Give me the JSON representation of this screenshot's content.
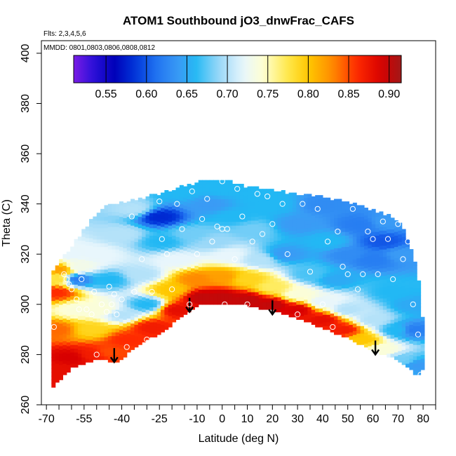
{
  "chart_data": {
    "type": "heatmap",
    "title": "ATOM1 Southbound jO3_dnwFrac_CAFS",
    "flights_note": "Flts: 2,3,4,5,6",
    "dates_note": "MMDD: 0801,0803,0806,0808,0812",
    "xlabel": "Latitude (deg N)",
    "ylabel": "Theta (C)",
    "xlim": [
      -72,
      85
    ],
    "ylim": [
      260,
      405
    ],
    "x_ticks": [
      -70,
      -55,
      -40,
      -25,
      -10,
      0,
      10,
      20,
      30,
      40,
      50,
      60,
      70,
      80
    ],
    "x_minor_ticks": [
      -65,
      -60,
      -50,
      -45,
      -35,
      -30,
      -20,
      -15,
      -5,
      5,
      15,
      25,
      35,
      45,
      55,
      65,
      75,
      85
    ],
    "y_ticks": [
      260,
      280,
      300,
      320,
      340,
      360,
      380,
      400
    ],
    "colorbar": {
      "min": 0.51,
      "max": 0.915,
      "ticks": [
        0.55,
        0.6,
        0.65,
        0.7,
        0.75,
        0.8,
        0.85,
        0.9
      ],
      "tick_labels": [
        "0.55",
        "0.60",
        "0.65",
        "0.70",
        "0.75",
        "0.80",
        "0.85",
        "0.90"
      ],
      "stops": [
        {
          "v": 0.51,
          "c": "#7a1de6"
        },
        {
          "v": 0.535,
          "c": "#2a0fd8"
        },
        {
          "v": 0.56,
          "c": "#0000b8"
        },
        {
          "v": 0.585,
          "c": "#0033d8"
        },
        {
          "v": 0.61,
          "c": "#1e6ff0"
        },
        {
          "v": 0.64,
          "c": "#3a9bf5"
        },
        {
          "v": 0.66,
          "c": "#22b8f4"
        },
        {
          "v": 0.69,
          "c": "#9ad8f8"
        },
        {
          "v": 0.72,
          "c": "#e8f6fc"
        },
        {
          "v": 0.745,
          "c": "#ffffd0"
        },
        {
          "v": 0.775,
          "c": "#ffe84a"
        },
        {
          "v": 0.8,
          "c": "#ffc800"
        },
        {
          "v": 0.83,
          "c": "#ff8a00"
        },
        {
          "v": 0.86,
          "c": "#ff2a00"
        },
        {
          "v": 0.89,
          "c": "#d80000"
        },
        {
          "v": 0.915,
          "c": "#a01818"
        }
      ]
    },
    "top_envelope": [
      {
        "lat": -68,
        "theta": 312
      },
      {
        "lat": -64,
        "theta": 318
      },
      {
        "lat": -60,
        "theta": 322
      },
      {
        "lat": -56,
        "theta": 328
      },
      {
        "lat": -50,
        "theta": 336
      },
      {
        "lat": -45,
        "theta": 339
      },
      {
        "lat": -38,
        "theta": 340
      },
      {
        "lat": -30,
        "theta": 342
      },
      {
        "lat": -20,
        "theta": 345
      },
      {
        "lat": -10,
        "theta": 348
      },
      {
        "lat": 0,
        "theta": 349
      },
      {
        "lat": 10,
        "theta": 346
      },
      {
        "lat": 20,
        "theta": 345
      },
      {
        "lat": 30,
        "theta": 343
      },
      {
        "lat": 40,
        "theta": 342
      },
      {
        "lat": 50,
        "theta": 340
      },
      {
        "lat": 60,
        "theta": 337
      },
      {
        "lat": 68,
        "theta": 334
      },
      {
        "lat": 72,
        "theta": 330
      },
      {
        "lat": 76,
        "theta": 320
      },
      {
        "lat": 79,
        "theta": 305
      },
      {
        "lat": 80,
        "theta": 290
      }
    ],
    "bottom_envelope": [
      {
        "lat": -68,
        "theta": 267
      },
      {
        "lat": -60,
        "theta": 275
      },
      {
        "lat": -55,
        "theta": 277
      },
      {
        "lat": -48,
        "theta": 279
      },
      {
        "lat": -42,
        "theta": 277
      },
      {
        "lat": -35,
        "theta": 283
      },
      {
        "lat": -25,
        "theta": 289
      },
      {
        "lat": -15,
        "theta": 296
      },
      {
        "lat": -10,
        "theta": 300
      },
      {
        "lat": 0,
        "theta": 301
      },
      {
        "lat": 10,
        "theta": 300
      },
      {
        "lat": 20,
        "theta": 298
      },
      {
        "lat": 30,
        "theta": 295
      },
      {
        "lat": 40,
        "theta": 291
      },
      {
        "lat": 50,
        "theta": 287
      },
      {
        "lat": 60,
        "theta": 282
      },
      {
        "lat": 68,
        "theta": 279
      },
      {
        "lat": 74,
        "theta": 275
      },
      {
        "lat": 78,
        "theta": 272
      },
      {
        "lat": 80,
        "theta": 275
      }
    ],
    "tropopause_arrows": [
      {
        "lat": -43,
        "theta": 277
      },
      {
        "lat": -13,
        "theta": 297
      },
      {
        "lat": 20,
        "theta": 296
      },
      {
        "lat": 61,
        "theta": 280
      }
    ],
    "field_points": [
      {
        "lat": -66,
        "theta": 274,
        "v": 0.88
      },
      {
        "lat": -60,
        "theta": 279,
        "v": 0.89
      },
      {
        "lat": -52,
        "theta": 280,
        "v": 0.87
      },
      {
        "lat": -45,
        "theta": 281,
        "v": 0.85
      },
      {
        "lat": -38,
        "theta": 286,
        "v": 0.86
      },
      {
        "lat": -28,
        "theta": 291,
        "v": 0.87
      },
      {
        "lat": -18,
        "theta": 298,
        "v": 0.88
      },
      {
        "lat": -8,
        "theta": 303,
        "v": 0.9
      },
      {
        "lat": 0,
        "theta": 303,
        "v": 0.9
      },
      {
        "lat": 10,
        "theta": 302,
        "v": 0.9
      },
      {
        "lat": 20,
        "theta": 300,
        "v": 0.9
      },
      {
        "lat": 30,
        "theta": 298,
        "v": 0.89
      },
      {
        "lat": 40,
        "theta": 294,
        "v": 0.88
      },
      {
        "lat": 48,
        "theta": 290,
        "v": 0.87
      },
      {
        "lat": 56,
        "theta": 286,
        "v": 0.8
      },
      {
        "lat": 64,
        "theta": 282,
        "v": 0.74
      },
      {
        "lat": 72,
        "theta": 278,
        "v": 0.68
      },
      {
        "lat": 78,
        "theta": 276,
        "v": 0.64
      },
      {
        "lat": -66,
        "theta": 290,
        "v": 0.84
      },
      {
        "lat": -66,
        "theta": 305,
        "v": 0.86
      },
      {
        "lat": -64,
        "theta": 314,
        "v": 0.82
      },
      {
        "lat": -58,
        "theta": 298,
        "v": 0.74
      },
      {
        "lat": -52,
        "theta": 290,
        "v": 0.79
      },
      {
        "lat": -48,
        "theta": 298,
        "v": 0.74
      },
      {
        "lat": -40,
        "theta": 296,
        "v": 0.7
      },
      {
        "lat": -30,
        "theta": 300,
        "v": 0.66
      },
      {
        "lat": -20,
        "theta": 306,
        "v": 0.8
      },
      {
        "lat": -10,
        "theta": 310,
        "v": 0.83
      },
      {
        "lat": 0,
        "theta": 311,
        "v": 0.82
      },
      {
        "lat": 10,
        "theta": 310,
        "v": 0.79
      },
      {
        "lat": 20,
        "theta": 307,
        "v": 0.77
      },
      {
        "lat": 30,
        "theta": 304,
        "v": 0.74
      },
      {
        "lat": 40,
        "theta": 301,
        "v": 0.72
      },
      {
        "lat": 50,
        "theta": 298,
        "v": 0.7
      },
      {
        "lat": 60,
        "theta": 294,
        "v": 0.7
      },
      {
        "lat": 70,
        "theta": 290,
        "v": 0.66
      },
      {
        "lat": 76,
        "theta": 290,
        "v": 0.62
      },
      {
        "lat": -58,
        "theta": 315,
        "v": 0.73
      },
      {
        "lat": -58,
        "theta": 310,
        "v": 0.62
      },
      {
        "lat": -50,
        "theta": 320,
        "v": 0.72
      },
      {
        "lat": -45,
        "theta": 310,
        "v": 0.66
      },
      {
        "lat": -40,
        "theta": 328,
        "v": 0.7
      },
      {
        "lat": -32,
        "theta": 312,
        "v": 0.7
      },
      {
        "lat": -25,
        "theta": 335,
        "v": 0.58
      },
      {
        "lat": -24,
        "theta": 325,
        "v": 0.66
      },
      {
        "lat": -18,
        "theta": 318,
        "v": 0.72
      },
      {
        "lat": -12,
        "theta": 328,
        "v": 0.68
      },
      {
        "lat": -5,
        "theta": 340,
        "v": 0.64
      },
      {
        "lat": -3,
        "theta": 325,
        "v": 0.69
      },
      {
        "lat": 3,
        "theta": 320,
        "v": 0.72
      },
      {
        "lat": 5,
        "theta": 335,
        "v": 0.66
      },
      {
        "lat": 12,
        "theta": 330,
        "v": 0.68
      },
      {
        "lat": 15,
        "theta": 318,
        "v": 0.7
      },
      {
        "lat": 20,
        "theta": 340,
        "v": 0.66
      },
      {
        "lat": 25,
        "theta": 320,
        "v": 0.64
      },
      {
        "lat": 30,
        "theta": 332,
        "v": 0.64
      },
      {
        "lat": 35,
        "theta": 312,
        "v": 0.67
      },
      {
        "lat": 42,
        "theta": 325,
        "v": 0.66
      },
      {
        "lat": 45,
        "theta": 310,
        "v": 0.65
      },
      {
        "lat": 50,
        "theta": 320,
        "v": 0.63
      },
      {
        "lat": 55,
        "theta": 332,
        "v": 0.62
      },
      {
        "lat": 60,
        "theta": 318,
        "v": 0.62
      },
      {
        "lat": 64,
        "theta": 325,
        "v": 0.6
      },
      {
        "lat": 68,
        "theta": 305,
        "v": 0.66
      },
      {
        "lat": 72,
        "theta": 320,
        "v": 0.64
      },
      {
        "lat": 76,
        "theta": 300,
        "v": 0.65
      },
      {
        "lat": -15,
        "theta": 345,
        "v": 0.66
      },
      {
        "lat": 0,
        "theta": 346,
        "v": 0.66
      },
      {
        "lat": 15,
        "theta": 343,
        "v": 0.66
      },
      {
        "lat": 40,
        "theta": 340,
        "v": 0.63
      },
      {
        "lat": 65,
        "theta": 333,
        "v": 0.64
      },
      {
        "lat": -35,
        "theta": 338,
        "v": 0.7
      },
      {
        "lat": -60,
        "theta": 320,
        "v": 0.72
      },
      {
        "lat": -65,
        "theta": 310,
        "v": 0.78
      }
    ],
    "markers": [
      {
        "lat": -67,
        "theta": 291
      },
      {
        "lat": -63,
        "theta": 312
      },
      {
        "lat": -62,
        "theta": 310
      },
      {
        "lat": -61,
        "theta": 308
      },
      {
        "lat": -60,
        "theta": 306
      },
      {
        "lat": -58,
        "theta": 302
      },
      {
        "lat": -57,
        "theta": 298
      },
      {
        "lat": -56,
        "theta": 310
      },
      {
        "lat": -54,
        "theta": 298
      },
      {
        "lat": -52,
        "theta": 296
      },
      {
        "lat": -51,
        "theta": 305
      },
      {
        "lat": -50,
        "theta": 280
      },
      {
        "lat": -48,
        "theta": 300
      },
      {
        "lat": -46,
        "theta": 297
      },
      {
        "lat": -45,
        "theta": 307
      },
      {
        "lat": -44,
        "theta": 300
      },
      {
        "lat": -43,
        "theta": 304
      },
      {
        "lat": -42,
        "theta": 296
      },
      {
        "lat": -40,
        "theta": 302
      },
      {
        "lat": -38,
        "theta": 283
      },
      {
        "lat": -36,
        "theta": 335
      },
      {
        "lat": -35,
        "theta": 305
      },
      {
        "lat": -32,
        "theta": 318
      },
      {
        "lat": -30,
        "theta": 286
      },
      {
        "lat": -28,
        "theta": 305
      },
      {
        "lat": -25,
        "theta": 341
      },
      {
        "lat": -24,
        "theta": 326
      },
      {
        "lat": -22,
        "theta": 320
      },
      {
        "lat": -20,
        "theta": 306
      },
      {
        "lat": -18,
        "theta": 340
      },
      {
        "lat": -16,
        "theta": 330
      },
      {
        "lat": -13,
        "theta": 300
      },
      {
        "lat": -12,
        "theta": 345
      },
      {
        "lat": -10,
        "theta": 320
      },
      {
        "lat": -8,
        "theta": 334
      },
      {
        "lat": -6,
        "theta": 342
      },
      {
        "lat": -4,
        "theta": 325
      },
      {
        "lat": -2,
        "theta": 331
      },
      {
        "lat": 0,
        "theta": 330
      },
      {
        "lat": 0,
        "theta": 349
      },
      {
        "lat": 1,
        "theta": 300
      },
      {
        "lat": 2,
        "theta": 330
      },
      {
        "lat": 5,
        "theta": 318
      },
      {
        "lat": 6,
        "theta": 346
      },
      {
        "lat": 8,
        "theta": 335
      },
      {
        "lat": 10,
        "theta": 300
      },
      {
        "lat": 12,
        "theta": 325
      },
      {
        "lat": 14,
        "theta": 344
      },
      {
        "lat": 16,
        "theta": 328
      },
      {
        "lat": 18,
        "theta": 343
      },
      {
        "lat": 20,
        "theta": 332
      },
      {
        "lat": 24,
        "theta": 340
      },
      {
        "lat": 26,
        "theta": 320
      },
      {
        "lat": 30,
        "theta": 296
      },
      {
        "lat": 32,
        "theta": 340
      },
      {
        "lat": 35,
        "theta": 313
      },
      {
        "lat": 38,
        "theta": 338
      },
      {
        "lat": 40,
        "theta": 300
      },
      {
        "lat": 42,
        "theta": 325
      },
      {
        "lat": 44,
        "theta": 291
      },
      {
        "lat": 46,
        "theta": 329
      },
      {
        "lat": 48,
        "theta": 315
      },
      {
        "lat": 50,
        "theta": 312
      },
      {
        "lat": 52,
        "theta": 338
      },
      {
        "lat": 54,
        "theta": 306
      },
      {
        "lat": 56,
        "theta": 312
      },
      {
        "lat": 58,
        "theta": 329
      },
      {
        "lat": 60,
        "theta": 326
      },
      {
        "lat": 62,
        "theta": 312
      },
      {
        "lat": 64,
        "theta": 333
      },
      {
        "lat": 66,
        "theta": 326
      },
      {
        "lat": 68,
        "theta": 310
      },
      {
        "lat": 70,
        "theta": 332
      },
      {
        "lat": 72,
        "theta": 318
      },
      {
        "lat": 74,
        "theta": 325
      },
      {
        "lat": 76,
        "theta": 300
      },
      {
        "lat": 78,
        "theta": 288
      },
      {
        "lat": 79,
        "theta": 272
      }
    ]
  }
}
